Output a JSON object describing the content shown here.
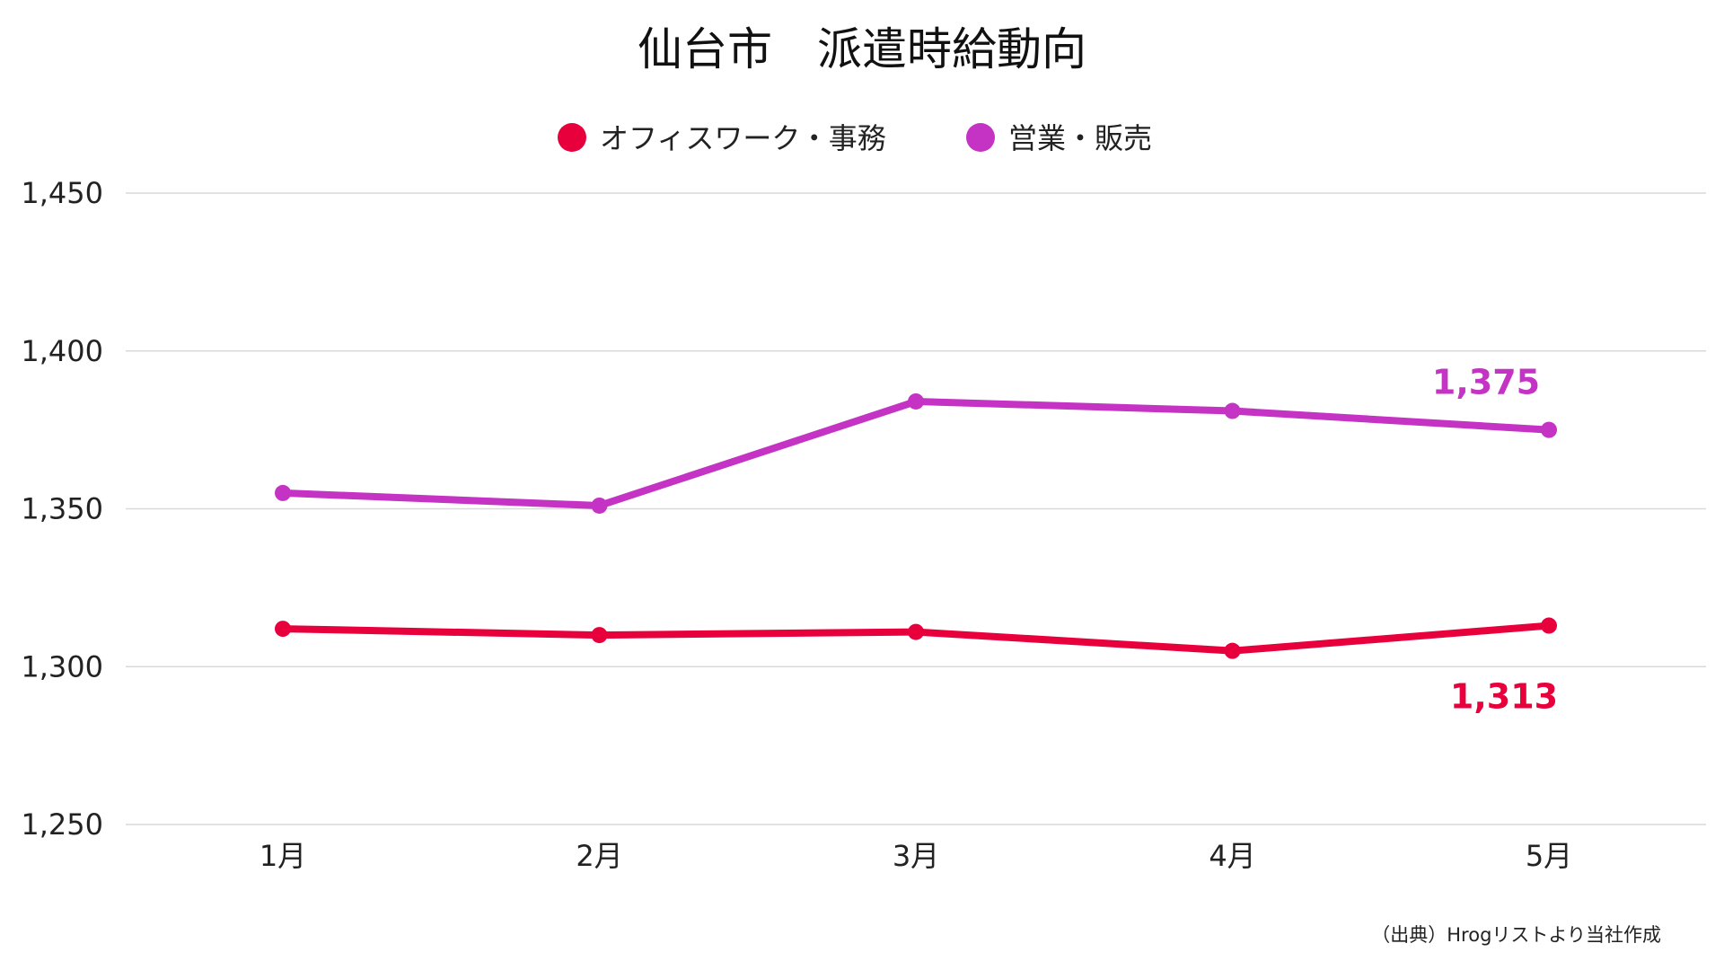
{
  "chart_data": {
    "type": "line",
    "title": "仙台市　派遣時給動向",
    "categories": [
      "1月",
      "2月",
      "3月",
      "4月",
      "5月"
    ],
    "ylim": [
      1250,
      1450
    ],
    "yticks": [
      1250,
      1300,
      1350,
      1400,
      1450
    ],
    "ytick_labels": [
      "1,250",
      "1,300",
      "1,350",
      "1,400",
      "1,450"
    ],
    "grid": true,
    "legend_position": "top-center",
    "series": [
      {
        "name": "オフィスワーク・事務",
        "color": "#e8003d",
        "values": [
          1312,
          1310,
          1311,
          1305,
          1313
        ],
        "end_label": "1,313",
        "end_label_position": "below"
      },
      {
        "name": "営業・販売",
        "color": "#c433c4",
        "values": [
          1355,
          1351,
          1384,
          1381,
          1375
        ],
        "end_label": "1,375",
        "end_label_position": "above"
      }
    ]
  },
  "source_note": "（出典）Hrogリストより当社作成"
}
